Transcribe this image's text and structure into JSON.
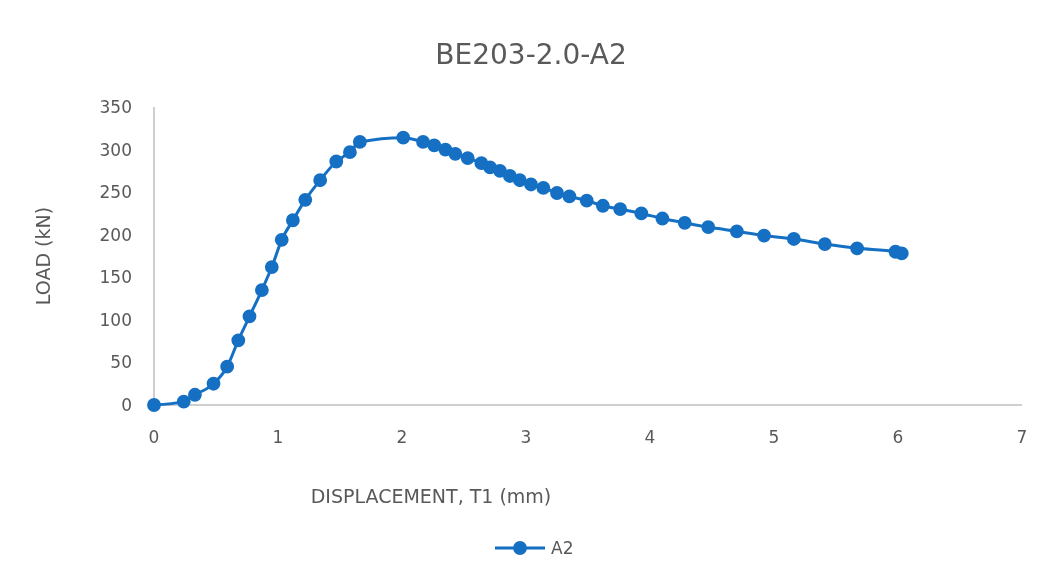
{
  "chart_data": {
    "type": "line",
    "title": "BE203-2.0-A2",
    "xlabel": "DISPLACEMENT, T1 (mm)",
    "ylabel": "LOAD (kN)",
    "xlim": [
      0,
      7
    ],
    "xticks": [
      0,
      1,
      2,
      3,
      4,
      5,
      6,
      7
    ],
    "ylim": [
      0,
      350
    ],
    "yticks": [
      0,
      50,
      100,
      150,
      200,
      250,
      300,
      350
    ],
    "grid": false,
    "legend": "bottom",
    "marker": "circle",
    "line_style": "solid",
    "series": [
      {
        "name": "A2",
        "color": "#1570c4",
        "x": [
          0,
          0.24,
          0.33,
          0.48,
          0.59,
          0.68,
          0.77,
          0.87,
          0.95,
          1.03,
          1.12,
          1.22,
          1.34,
          1.47,
          1.58,
          1.66,
          2.01,
          2.17,
          2.26,
          2.35,
          2.43,
          2.53,
          2.64,
          2.71,
          2.79,
          2.87,
          2.95,
          3.04,
          3.14,
          3.25,
          3.35,
          3.49,
          3.62,
          3.76,
          3.93,
          4.1,
          4.28,
          4.47,
          4.7,
          4.92,
          5.16,
          5.41,
          5.67,
          5.98,
          6.03
        ],
        "values": [
          0,
          4,
          12,
          25,
          45,
          76,
          104,
          135,
          162,
          194,
          217,
          241,
          264,
          286,
          297,
          309,
          314,
          309,
          305,
          300,
          295,
          290,
          284,
          279,
          275,
          269,
          264,
          259,
          255,
          249,
          245,
          240,
          234,
          230,
          225,
          219,
          214,
          209,
          204,
          199,
          195,
          189,
          184,
          180,
          178
        ]
      }
    ]
  }
}
